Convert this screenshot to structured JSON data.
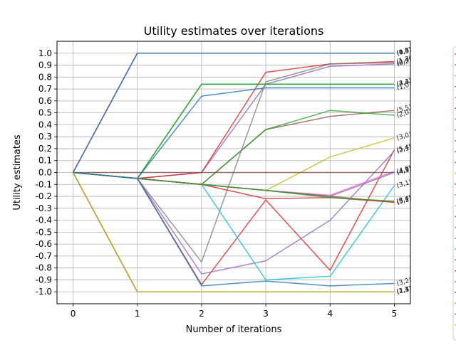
{
  "chart_data": {
    "type": "line",
    "title": "Utility estimates over iterations",
    "xlabel": "Number of iterations",
    "ylabel": "Utility estimates",
    "x": [
      0,
      1,
      2,
      3,
      4,
      5
    ],
    "xlim": [
      -0.25,
      5.25
    ],
    "ylim": [
      -1.1,
      1.1
    ],
    "xticks": [
      "0",
      "1",
      "2",
      "3",
      "4",
      "5"
    ],
    "yticks": [
      "1.0",
      "0.9",
      "0.8",
      "0.7",
      "0.6",
      "0.5",
      "0.4",
      "0.3",
      "0.2",
      "0.1",
      "0.0",
      "-0.1",
      "-0.2",
      "-0.3",
      "-0.4",
      "-0.5",
      "-0.6",
      "-0.7",
      "-0.8",
      "-0.9",
      "-1.0"
    ],
    "grid": true,
    "legend": "right, clipped",
    "series": [
      {
        "label": "(0,3)",
        "color": "#d62728",
        "values": [
          0,
          1,
          1,
          1,
          1,
          1
        ]
      },
      {
        "label": "(1,5)",
        "color": "#8c564b",
        "values": [
          0,
          1,
          1,
          1,
          1,
          1
        ]
      },
      {
        "label": "(4,5)",
        "color": "#e377c2",
        "values": [
          0,
          1,
          1,
          1,
          1,
          1
        ]
      },
      {
        "label": "(0,4)",
        "color": "#1f77b4",
        "values": [
          0,
          1,
          1,
          1,
          1,
          1
        ]
      },
      {
        "label": "(0,2)",
        "color": "#9467bd",
        "values": [
          0,
          -0.05,
          0,
          0.74,
          0.89,
          0.91
        ]
      },
      {
        "label": "(1,3)",
        "color": "#d62728",
        "values": [
          0,
          -0.05,
          0,
          0.84,
          0.91,
          0.93
        ]
      },
      {
        "label": "(3,3)",
        "color": "#2ca02c",
        "values": [
          0,
          -0.05,
          0.74,
          0.74,
          0.74,
          0.74
        ]
      },
      {
        "label": "(4,4)",
        "color": "#2ca02c",
        "values": [
          0,
          -0.05,
          0.74,
          0.74,
          0.74,
          0.74
        ]
      },
      {
        "label": "(1,0)",
        "color": "#1f77b4",
        "values": [
          0,
          -0.05,
          0.64,
          0.71,
          0.71,
          0.71
        ]
      },
      {
        "label": "(5,5)",
        "color": "#8c564b",
        "values": [
          0,
          -0.05,
          -0.1,
          0.36,
          0.47,
          0.52
        ]
      },
      {
        "label": "(2,0)",
        "color": "#2ca02c",
        "values": [
          0,
          -0.05,
          -0.1,
          0.36,
          0.52,
          0.48
        ]
      },
      {
        "label": "(3,0)",
        "color": "#bcbd22",
        "values": [
          0,
          -0.05,
          -0.1,
          -0.15,
          0.13,
          0.29
        ]
      },
      {
        "label": "(5,4)",
        "color": "#d62728",
        "values": [
          0,
          -0.05,
          -0.94,
          -0.23,
          -0.82,
          0.19
        ]
      },
      {
        "label": "(2,1)",
        "color": "#9467bd",
        "values": [
          0,
          -0.05,
          -0.85,
          -0.74,
          -0.4,
          0.18
        ]
      },
      {
        "label": "(4,0)",
        "color": "#e377c2",
        "values": [
          0,
          -0.05,
          -0.1,
          -0.15,
          -0.19,
          0.01
        ]
      },
      {
        "label": "(4,3)",
        "color": "#8c564b",
        "values": [
          0,
          0,
          0,
          0,
          0,
          0
        ]
      },
      {
        "label": "(4,1)",
        "color": "#9467bd",
        "values": [
          0,
          -0.05,
          -0.1,
          -0.15,
          -0.2,
          0
        ]
      },
      {
        "label": "(2,4)",
        "color": "#7f7f7f",
        "values": [
          0,
          -0.05,
          -0.75,
          0.76,
          0.91,
          0.92
        ]
      },
      {
        "label": "(3,1)",
        "color": "#17becf",
        "values": [
          0,
          -0.05,
          -0.1,
          -0.9,
          -0.87,
          -0.11
        ]
      },
      {
        "label": "(5,1)",
        "color": "#8c564b",
        "values": [
          0,
          -0.05,
          -0.1,
          -0.15,
          -0.2,
          -0.25
        ]
      },
      {
        "label": "(5,2)",
        "color": "#d62728",
        "values": [
          0,
          -0.05,
          -0.1,
          -0.22,
          -0.21,
          -0.25
        ]
      },
      {
        "label": "(3,4)",
        "color": "#2ca02c",
        "values": [
          0,
          -0.05,
          -0.1,
          -0.15,
          -0.21,
          -0.24
        ]
      },
      {
        "label": "(3,2)",
        "color": "#1f77b4",
        "values": [
          0,
          -0.05,
          -0.95,
          -0.91,
          -0.95,
          -0.93
        ]
      },
      {
        "label": "(1,4)",
        "color": "#ff7f0e",
        "values": [
          0,
          -1,
          -1,
          -1,
          -1,
          -1
        ]
      },
      {
        "label": "(1,1)",
        "color": "#8c564b",
        "values": [
          0,
          -1,
          -1,
          -1,
          -1,
          -1
        ]
      },
      {
        "label": "(2,3)",
        "color": "#bcbd22",
        "values": [
          0,
          -1,
          -1,
          -1,
          -1,
          -1
        ]
      }
    ]
  }
}
